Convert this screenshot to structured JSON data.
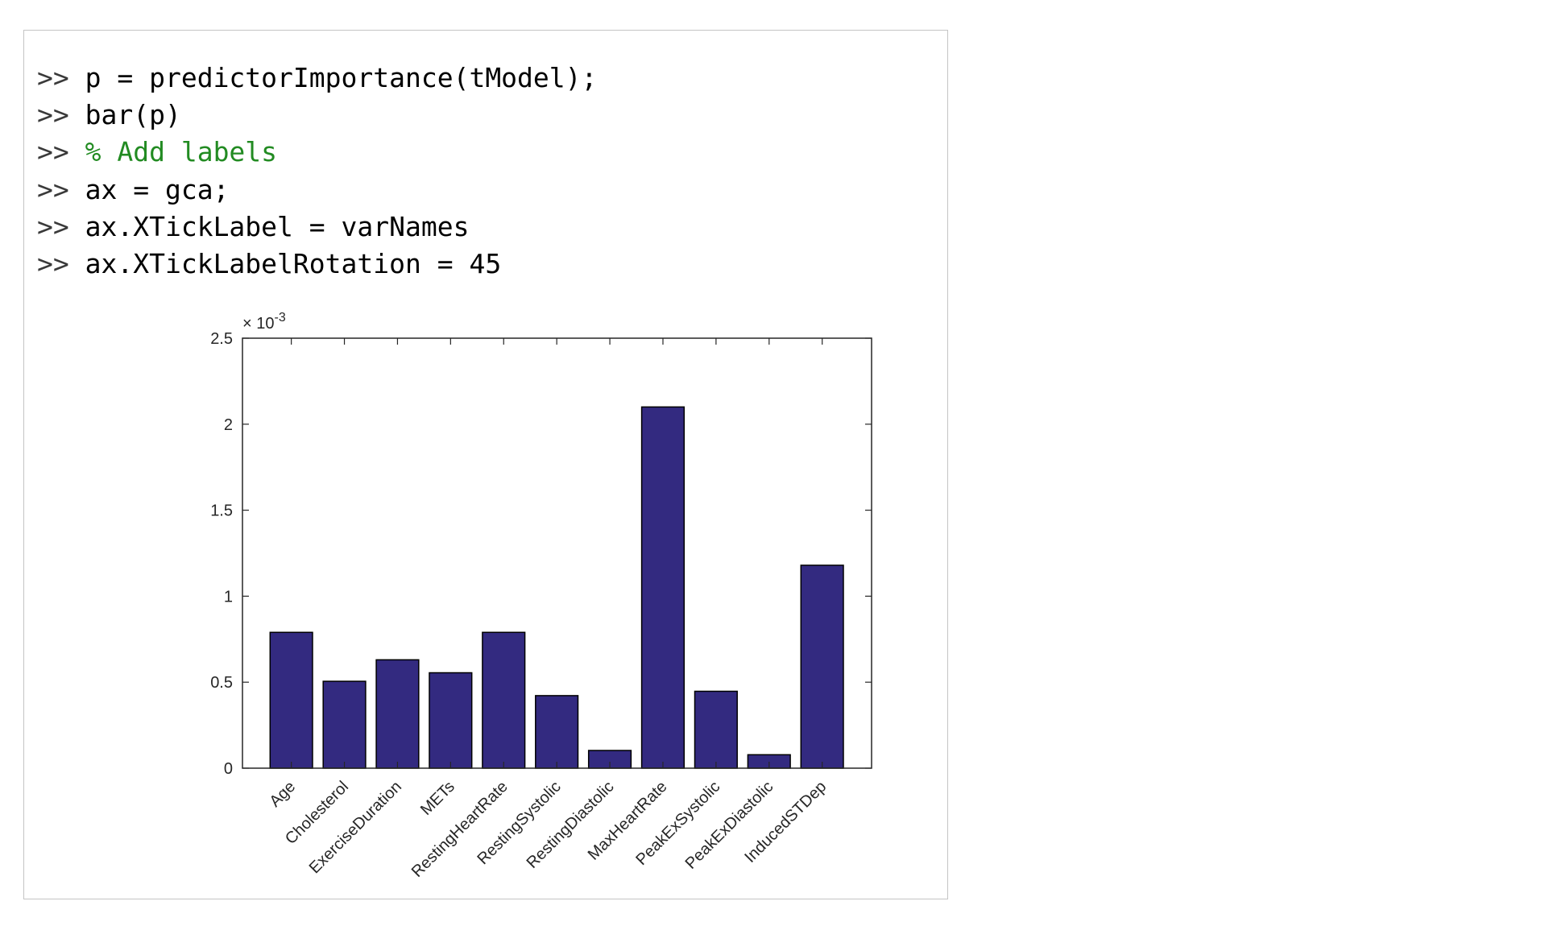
{
  "command_window": {
    "prompt": ">>",
    "lines": [
      {
        "code": "p = predictorImportance(tModel);",
        "comment": false
      },
      {
        "code": "bar(p)",
        "comment": false
      },
      {
        "code": "% Add labels",
        "comment": true
      },
      {
        "code": "ax = gca;",
        "comment": false
      },
      {
        "code": "ax.XTickLabel = varNames",
        "comment": false
      },
      {
        "code": "ax.XTickLabelRotation = 45",
        "comment": false
      }
    ]
  },
  "chart_data": {
    "type": "bar",
    "categories": [
      "Age",
      "Cholesterol",
      "ExerciseDuration",
      "METs",
      "RestingHeartRate",
      "RestingSystolic",
      "RestingDiastolic",
      "MaxHeartRate",
      "PeakExSystolic",
      "PeakExDiastolic",
      "InducedSTDep"
    ],
    "values": [
      0.00079,
      0.000505,
      0.00063,
      0.000555,
      0.00079,
      0.000422,
      0.000103,
      0.0021,
      0.000447,
      7.8e-05,
      0.00118
    ],
    "ylim": [
      0,
      0.0025
    ],
    "yticks": [
      0,
      0.0005,
      0.001,
      0.0015,
      0.002,
      0.0025
    ],
    "ytick_labels": [
      "0",
      "0.5",
      "1",
      "1.5",
      "2",
      "2.5"
    ],
    "exponent_label": "× 10",
    "exponent": "-3",
    "xtick_rotation": 45,
    "grid": false,
    "bar_color": "#332a80",
    "title": "",
    "xlabel": "",
    "ylabel": ""
  }
}
